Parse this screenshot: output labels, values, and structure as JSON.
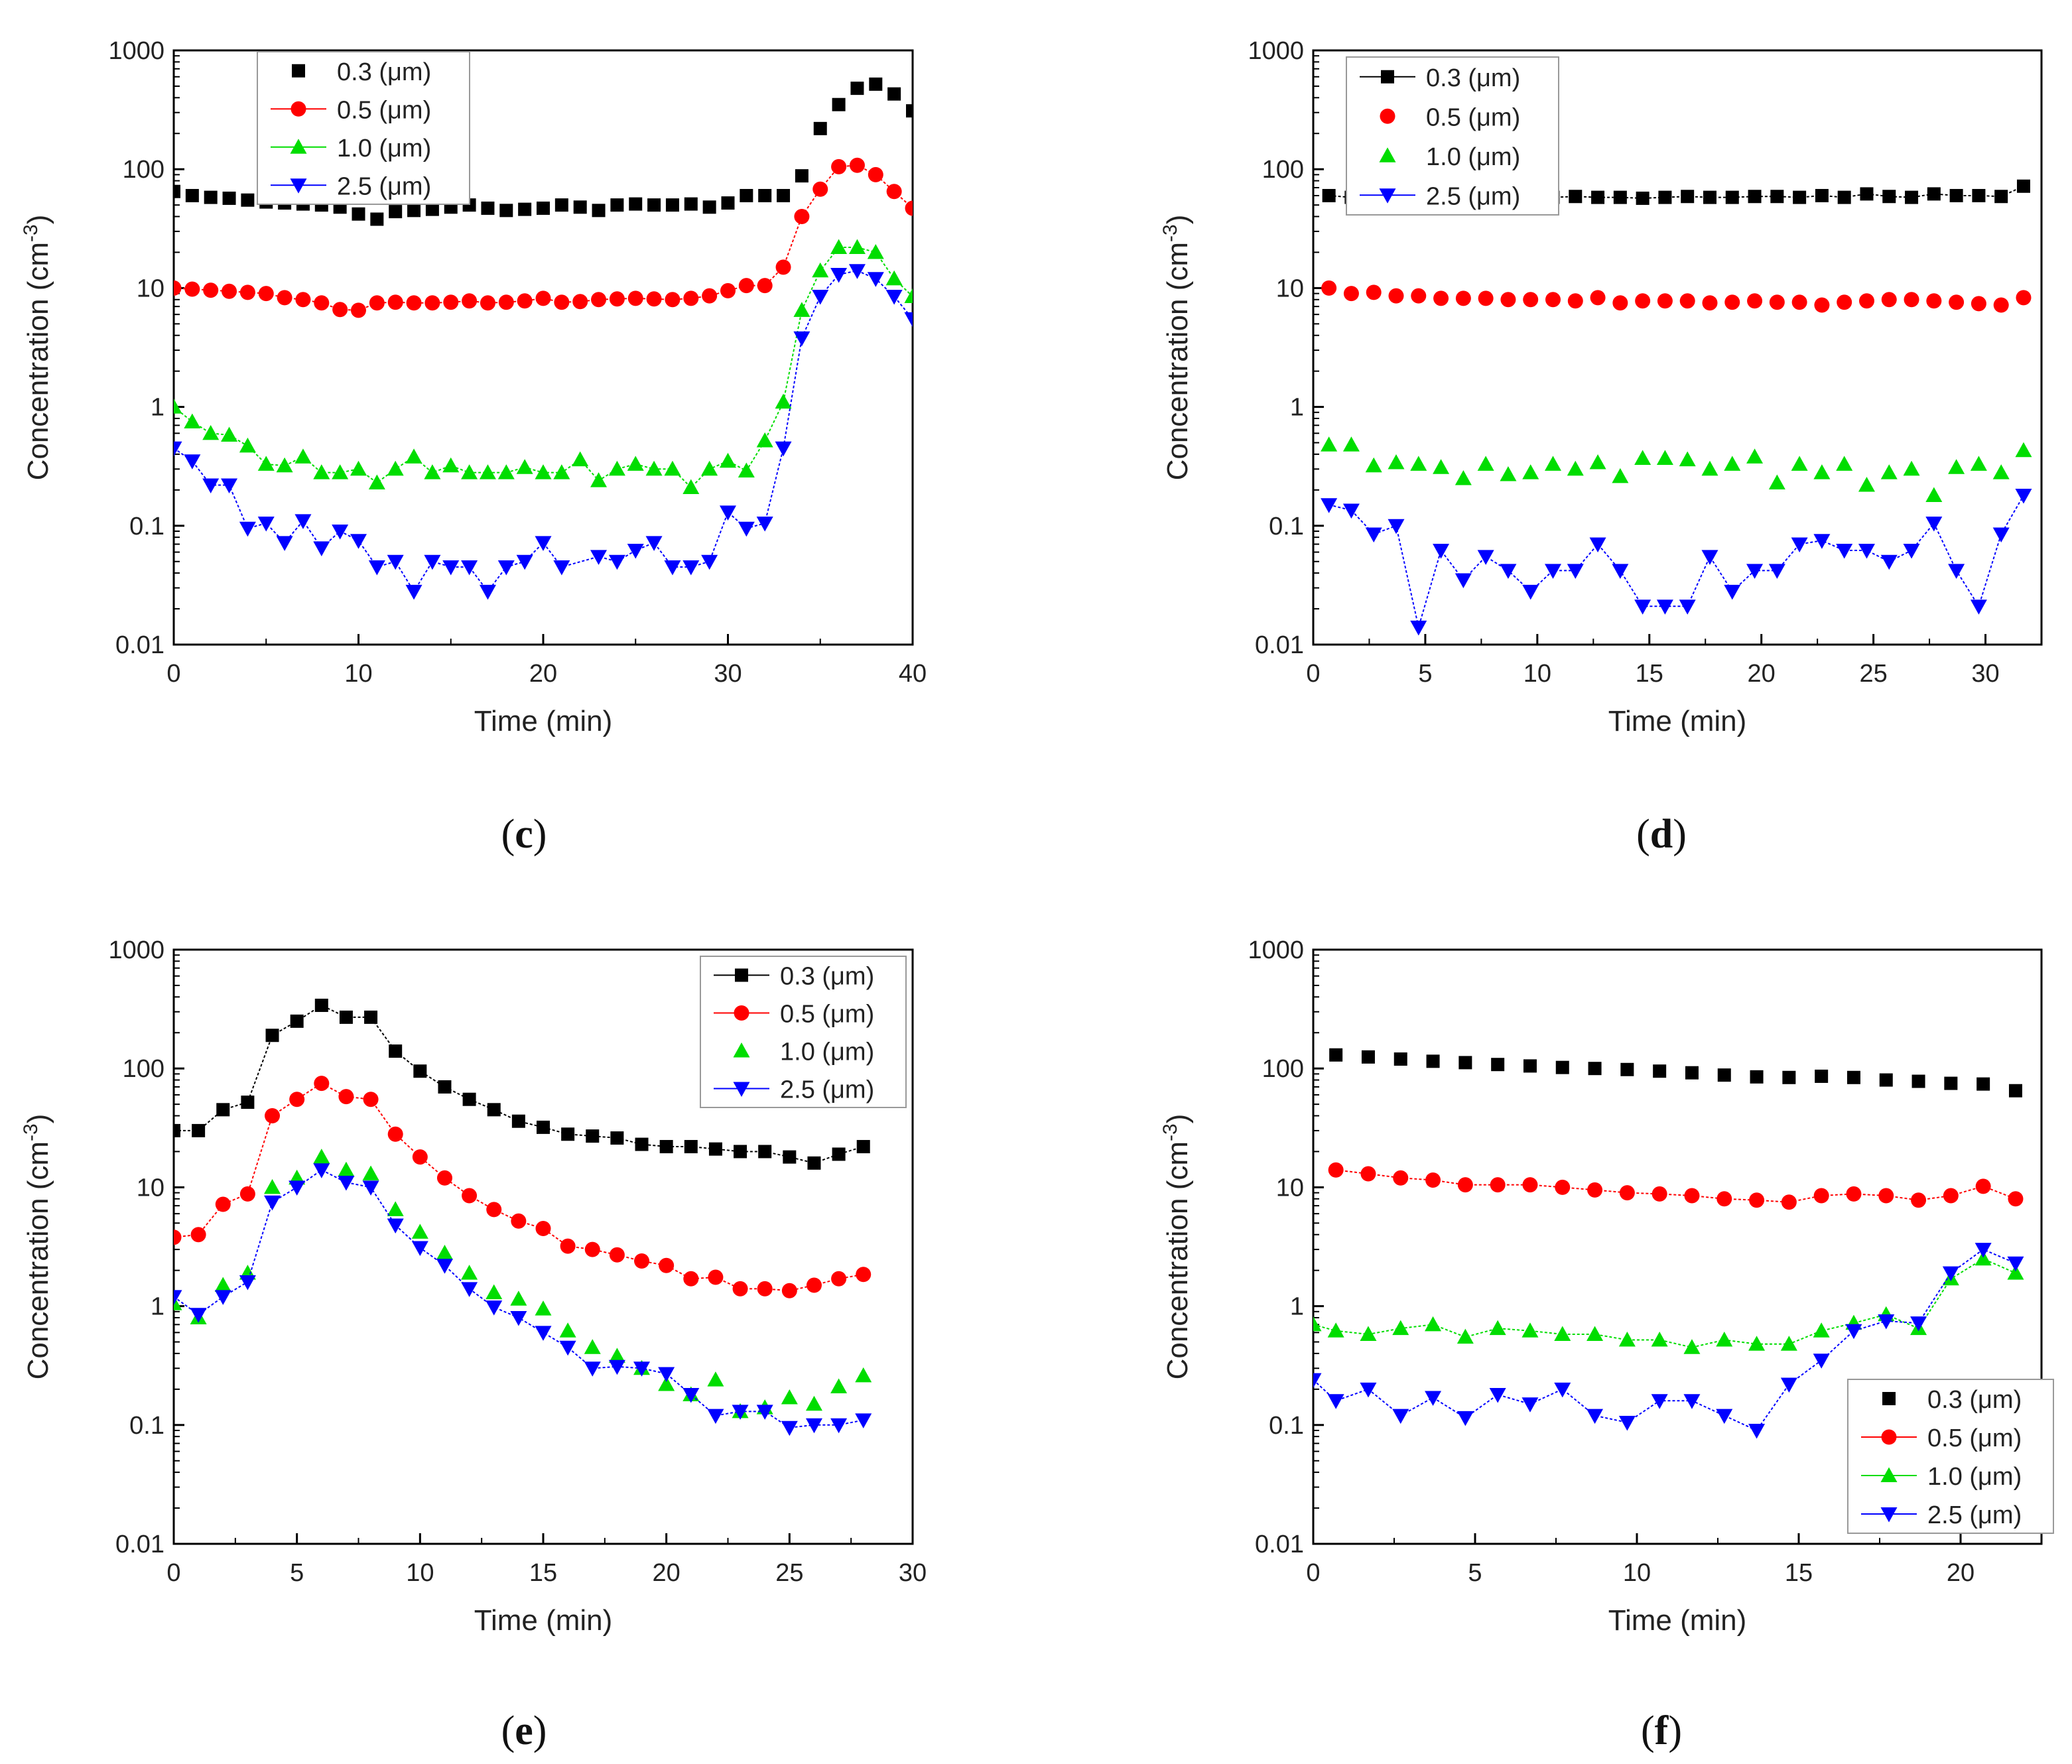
{
  "chart_data": [
    {
      "panel": "c",
      "type": "scatter",
      "caption_letter": "c",
      "xlabel": "Time (min)",
      "ylabel_main": "Concentration (cm",
      "ylabel_sup": "-3",
      "ylabel_tail": ")",
      "xlim": [
        0,
        40
      ],
      "ylim": [
        0.01,
        1000
      ],
      "yscale": "log",
      "xticks": [
        0,
        10,
        20,
        30,
        40
      ],
      "yticks": [
        0.01,
        0.1,
        1,
        10,
        100,
        1000
      ],
      "ytick_labels": [
        "0.01",
        "0.1",
        "1",
        "10",
        "100",
        "1000"
      ],
      "legend_position": "top-left",
      "x": [
        0,
        1,
        2,
        3,
        4,
        5,
        6,
        7,
        8,
        9,
        10,
        11,
        12,
        13,
        14,
        15,
        16,
        17,
        18,
        19,
        20,
        21,
        22,
        23,
        24,
        25,
        26,
        27,
        28,
        29,
        30,
        31,
        32,
        33,
        34,
        35,
        36,
        37,
        38,
        39,
        40
      ],
      "series": [
        {
          "name": "0.3 (μm)",
          "color": "#000000",
          "marker": "square",
          "line": false,
          "values": [
            65,
            60,
            58,
            57,
            55,
            53,
            52,
            51,
            50,
            48,
            42,
            38,
            44,
            45,
            46,
            48,
            50,
            47,
            45,
            46,
            47,
            50,
            48,
            45,
            50,
            51,
            50,
            50,
            51,
            48,
            52,
            60,
            60,
            60,
            88,
            220,
            350,
            480,
            520,
            430,
            310
          ]
        },
        {
          "name": "0.5 (μm)",
          "color": "#ff0000",
          "marker": "circle",
          "line": true,
          "values": [
            10,
            9.8,
            9.6,
            9.4,
            9.2,
            9.0,
            8.3,
            8.0,
            7.5,
            6.6,
            6.5,
            7.5,
            7.6,
            7.5,
            7.5,
            7.6,
            7.8,
            7.5,
            7.6,
            7.8,
            8.2,
            7.6,
            7.7,
            8.0,
            8.1,
            8.2,
            8.1,
            8.0,
            8.2,
            8.6,
            9.5,
            10.5,
            10.5,
            15,
            40,
            68,
            105,
            108,
            90,
            65,
            47
          ]
        },
        {
          "name": "1.0 (μm)",
          "color": "#00dd00",
          "marker": "triangle-up",
          "line": true,
          "values": [
            1.0,
            0.75,
            0.6,
            0.58,
            0.47,
            0.33,
            0.32,
            0.38,
            0.28,
            0.28,
            0.3,
            0.23,
            0.3,
            0.38,
            0.28,
            0.32,
            0.28,
            0.28,
            0.28,
            0.31,
            0.28,
            0.28,
            0.36,
            0.24,
            0.3,
            0.33,
            0.3,
            0.3,
            0.21,
            0.3,
            0.35,
            0.29,
            0.52,
            1.1,
            6.5,
            14,
            22,
            22,
            20,
            12,
            8.5
          ]
        },
        {
          "name": "2.5 (μm)",
          "color": "#0000ff",
          "marker": "triangle-down",
          "line": true,
          "values": [
            0.45,
            0.35,
            0.22,
            0.22,
            0.095,
            0.105,
            0.072,
            0.11,
            0.065,
            0.09,
            0.075,
            0.045,
            0.05,
            0.028,
            0.05,
            0.045,
            0.045,
            0.028,
            0.045,
            0.05,
            0.072,
            0.045,
            null,
            0.055,
            0.05,
            0.062,
            0.072,
            0.045,
            0.045,
            0.05,
            0.13,
            0.095,
            0.105,
            0.45,
            3.8,
            8.5,
            13,
            14,
            12,
            8.5,
            5.5
          ]
        }
      ]
    },
    {
      "panel": "d",
      "type": "scatter",
      "caption_letter": "d",
      "xlabel": "Time (min)",
      "ylabel_main": "Concentration (cm",
      "ylabel_sup": "-3",
      "ylabel_tail": ")",
      "xlim": [
        0,
        32.5
      ],
      "ylim": [
        0.01,
        1000
      ],
      "yscale": "log",
      "xticks": [
        0,
        5,
        10,
        15,
        20,
        25,
        30
      ],
      "yticks": [
        0.01,
        0.1,
        1,
        10,
        100,
        1000
      ],
      "ytick_labels": [
        "0.01",
        "0.1",
        "1",
        "10",
        "100",
        "1000"
      ],
      "legend_position": "top-left",
      "x": [
        0.7,
        1.7,
        2.7,
        3.7,
        4.7,
        5.7,
        6.7,
        7.7,
        8.7,
        9.7,
        10.7,
        11.7,
        12.7,
        13.7,
        14.7,
        15.7,
        16.7,
        17.7,
        18.7,
        19.7,
        20.7,
        21.7,
        22.7,
        23.7,
        24.7,
        25.7,
        26.7,
        27.7,
        28.7,
        29.7,
        30.7,
        31.7
      ],
      "series": [
        {
          "name": "0.3 (μm)",
          "color": "#000000",
          "marker": "square",
          "line": true,
          "values": [
            60,
            58,
            59,
            60,
            57,
            58,
            60,
            59,
            58,
            58,
            58,
            59,
            58,
            58,
            57,
            58,
            59,
            58,
            58,
            59,
            59,
            58,
            60,
            58,
            62,
            59,
            58,
            62,
            60,
            60,
            59,
            72
          ]
        },
        {
          "name": "0.5 (μm)",
          "color": "#ff0000",
          "marker": "circle",
          "line": false,
          "values": [
            10,
            9.0,
            9.2,
            8.6,
            8.6,
            8.2,
            8.2,
            8.2,
            8.0,
            8.0,
            8.0,
            7.8,
            8.3,
            7.5,
            7.8,
            7.8,
            7.8,
            7.5,
            7.6,
            7.8,
            7.6,
            7.6,
            7.2,
            7.6,
            7.8,
            8.0,
            8.0,
            7.8,
            7.6,
            7.4,
            7.2,
            8.3
          ]
        },
        {
          "name": "1.0 (μm)",
          "color": "#00dd00",
          "marker": "triangle-up",
          "line": false,
          "values": [
            0.48,
            0.48,
            0.32,
            0.34,
            0.33,
            0.31,
            0.25,
            0.33,
            0.27,
            0.28,
            0.33,
            0.3,
            0.34,
            0.26,
            0.37,
            0.37,
            0.36,
            0.3,
            0.33,
            0.38,
            0.23,
            0.33,
            0.28,
            0.33,
            0.22,
            0.28,
            0.3,
            0.18,
            0.31,
            0.33,
            0.28,
            0.43
          ]
        },
        {
          "name": "2.5 (μm)",
          "color": "#0000ff",
          "marker": "triangle-down",
          "line": true,
          "values": [
            0.15,
            0.135,
            0.085,
            0.1,
            0.014,
            0.062,
            0.035,
            0.055,
            0.042,
            0.028,
            0.042,
            0.042,
            0.07,
            0.042,
            0.021,
            0.021,
            0.021,
            0.055,
            0.028,
            0.042,
            0.042,
            0.07,
            0.075,
            0.062,
            0.062,
            0.05,
            0.062,
            0.105,
            0.042,
            0.021,
            0.085,
            0.18
          ]
        }
      ]
    },
    {
      "panel": "e",
      "type": "scatter",
      "caption_letter": "e",
      "xlabel": "Time (min)",
      "ylabel_main": "Concentration (cm",
      "ylabel_sup": "-3",
      "ylabel_tail": ")",
      "xlim": [
        0,
        30
      ],
      "ylim": [
        0.01,
        1000
      ],
      "yscale": "log",
      "xticks": [
        0,
        5,
        10,
        15,
        20,
        25,
        30
      ],
      "yticks": [
        0.01,
        0.1,
        1,
        10,
        100,
        1000
      ],
      "ytick_labels": [
        "0.01",
        "0.1",
        "1",
        "10",
        "100",
        "1000"
      ],
      "legend_position": "top-right",
      "x": [
        0,
        1,
        2,
        3,
        4,
        5,
        6,
        7,
        8,
        9,
        10,
        11,
        12,
        13,
        14,
        15,
        16,
        17,
        18,
        19,
        20,
        21,
        22,
        23,
        24,
        25,
        26,
        27,
        28
      ],
      "series": [
        {
          "name": "0.3 (μm)",
          "color": "#000000",
          "marker": "square",
          "line": true,
          "values": [
            30,
            30,
            45,
            52,
            190,
            250,
            340,
            270,
            270,
            140,
            95,
            70,
            55,
            45,
            36,
            32,
            28,
            27,
            26,
            23,
            22,
            22,
            21,
            20,
            20,
            18,
            16,
            19,
            22
          ]
        },
        {
          "name": "0.5 (μm)",
          "color": "#ff0000",
          "marker": "circle",
          "line": true,
          "values": [
            3.8,
            4.0,
            7.2,
            8.8,
            40,
            55,
            75,
            58,
            55,
            28,
            18,
            12,
            8.5,
            6.5,
            5.2,
            4.5,
            3.2,
            3.0,
            2.7,
            2.4,
            2.2,
            1.7,
            1.75,
            1.4,
            1.4,
            1.35,
            1.5,
            1.7,
            1.85
          ]
        },
        {
          "name": "1.0 (μm)",
          "color": "#00dd00",
          "marker": "triangle-up",
          "line": false,
          "values": [
            1.05,
            0.8,
            1.5,
            1.9,
            10,
            12,
            18,
            14,
            13,
            6.5,
            4.2,
            2.8,
            1.9,
            1.3,
            1.15,
            0.95,
            0.62,
            0.45,
            0.38,
            0.3,
            0.22,
            0.18,
            0.24,
            0.13,
            0.14,
            0.17,
            0.15,
            0.21,
            0.26
          ]
        },
        {
          "name": "2.5 (μm)",
          "color": "#0000ff",
          "marker": "triangle-down",
          "line": true,
          "values": [
            1.2,
            0.85,
            1.2,
            1.6,
            7.5,
            10,
            14,
            11,
            10,
            4.8,
            3.1,
            2.2,
            1.4,
            0.98,
            0.8,
            0.6,
            0.45,
            0.3,
            0.31,
            0.3,
            0.27,
            0.18,
            0.12,
            0.13,
            0.13,
            0.095,
            0.1,
            0.1,
            0.11
          ]
        }
      ]
    },
    {
      "panel": "f",
      "type": "scatter",
      "caption_letter": "f",
      "xlabel": "Time (min)",
      "ylabel_main": "Concentration (cm",
      "ylabel_sup": "-3",
      "ylabel_tail": ")",
      "xlim": [
        0,
        22.5
      ],
      "ylim": [
        0.01,
        1000
      ],
      "yscale": "log",
      "xticks": [
        0,
        5,
        10,
        15,
        20
      ],
      "yticks": [
        0.01,
        0.1,
        1,
        10,
        100,
        1000
      ],
      "ytick_labels": [
        "0.01",
        "0.1",
        "1",
        "10",
        "100",
        "1000"
      ],
      "legend_position": "bottom-right",
      "x": [
        0,
        0.7,
        1.7,
        2.7,
        3.7,
        4.7,
        5.7,
        6.7,
        7.7,
        8.7,
        9.7,
        10.7,
        11.7,
        12.7,
        13.7,
        14.7,
        15.7,
        16.7,
        17.7,
        18.7,
        19.7,
        20.7,
        21.7
      ],
      "series": [
        {
          "name": "0.3 (μm)",
          "color": "#000000",
          "marker": "square",
          "line": false,
          "values": [
            null,
            130,
            125,
            120,
            115,
            112,
            108,
            105,
            102,
            100,
            98,
            95,
            92,
            88,
            85,
            84,
            86,
            84,
            80,
            78,
            75,
            74,
            65
          ]
        },
        {
          "name": "0.5 (μm)",
          "color": "#ff0000",
          "marker": "circle",
          "line": true,
          "values": [
            null,
            14,
            13,
            12,
            11.5,
            10.5,
            10.5,
            10.5,
            10,
            9.5,
            9,
            8.8,
            8.5,
            8,
            7.8,
            7.5,
            8.5,
            8.8,
            8.5,
            7.8,
            8.5,
            10.2,
            8
          ]
        },
        {
          "name": "1.0 (μm)",
          "color": "#00dd00",
          "marker": "triangle-up",
          "line": true,
          "values": [
            0.7,
            0.62,
            0.58,
            0.65,
            0.7,
            0.55,
            0.65,
            0.62,
            0.58,
            0.58,
            0.52,
            0.52,
            0.45,
            0.52,
            0.48,
            0.48,
            0.62,
            0.72,
            0.85,
            0.65,
            1.7,
            2.5,
            1.9
          ]
        },
        {
          "name": "2.5 (μm)",
          "color": "#0000ff",
          "marker": "triangle-down",
          "line": true,
          "values": [
            0.24,
            0.16,
            0.2,
            0.12,
            0.17,
            0.115,
            0.18,
            0.15,
            0.2,
            0.12,
            0.105,
            0.16,
            0.16,
            0.12,
            0.09,
            0.22,
            0.35,
            0.62,
            0.75,
            0.72,
            1.9,
            3.0,
            2.3
          ]
        }
      ]
    }
  ]
}
